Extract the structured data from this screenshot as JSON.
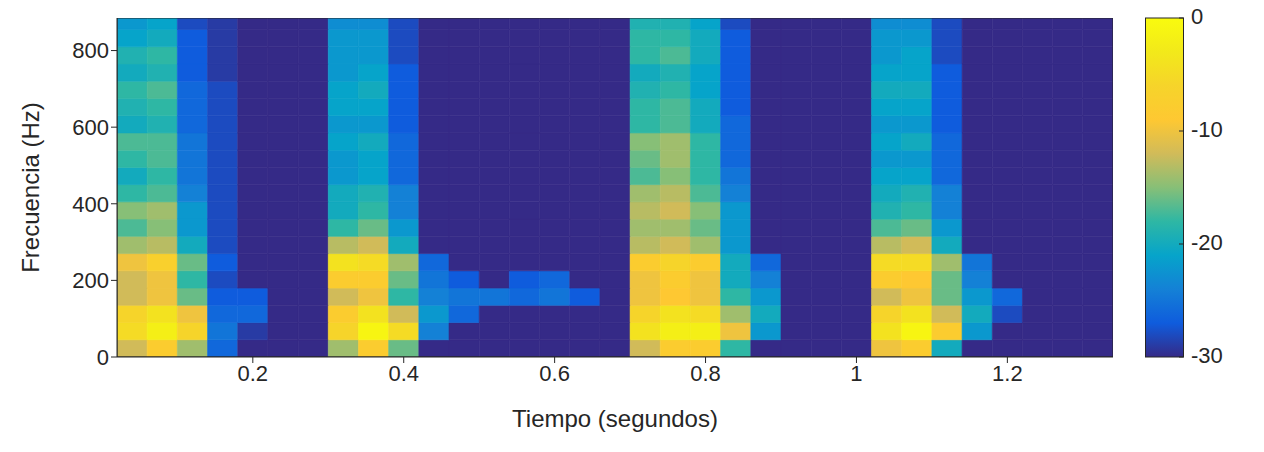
{
  "chart_data": {
    "type": "heatmap",
    "x_label": "Tiempo (segundos)",
    "y_label": "Frecuencia (Hz)",
    "xlim": [
      0.02,
      1.34
    ],
    "xticks": [
      0.2,
      0.4,
      0.6,
      0.8,
      1,
      1.2
    ],
    "ylim": [
      0,
      885
    ],
    "yticks": [
      0,
      200,
      400,
      600,
      800
    ],
    "x_edges": [
      0.02,
      0.06,
      0.1,
      0.14,
      0.18,
      0.22,
      0.26,
      0.3,
      0.34,
      0.38,
      0.42,
      0.46,
      0.5,
      0.54,
      0.58,
      0.62,
      0.66,
      0.7,
      0.74,
      0.78,
      0.82,
      0.86,
      0.9,
      0.94,
      0.98,
      1.02,
      1.06,
      1.1,
      1.14,
      1.18,
      1.22,
      1.26,
      1.3,
      1.34
    ],
    "y_edges": [
      0,
      45,
      90,
      135,
      180,
      225,
      270,
      315,
      360,
      405,
      450,
      495,
      540,
      585,
      630,
      675,
      720,
      765,
      810,
      855,
      900
    ],
    "values": [
      [
        -12,
        -8,
        -14,
        -26,
        -30,
        -30,
        -30,
        -14,
        -8,
        -16,
        -30,
        -30,
        -30,
        -30,
        -30,
        -30,
        -30,
        -12,
        -8,
        -8,
        -18,
        -30,
        -30,
        -30,
        -30,
        -10,
        -8,
        -20,
        -30,
        -30,
        -30,
        -30,
        -30
      ],
      [
        -5,
        -2,
        -6,
        -25,
        -29,
        -30,
        -30,
        -6,
        -1,
        -5,
        -24,
        -30,
        -30,
        -30,
        -30,
        -30,
        -30,
        -4,
        -2,
        -2,
        -10,
        -22,
        -30,
        -30,
        -30,
        -4,
        -1,
        -8,
        -22,
        -30,
        -30,
        -30,
        -30
      ],
      [
        -6,
        -4,
        -10,
        -26,
        -26,
        -30,
        -30,
        -8,
        -4,
        -12,
        -22,
        -26,
        -30,
        -30,
        -30,
        -30,
        -30,
        -6,
        -4,
        -5,
        -14,
        -20,
        -30,
        -30,
        -30,
        -6,
        -4,
        -12,
        -20,
        -28,
        -30,
        -30,
        -30
      ],
      [
        -12,
        -10,
        -16,
        -27,
        -27,
        -30,
        -30,
        -12,
        -10,
        -18,
        -24,
        -25,
        -25,
        -26,
        -25,
        -27,
        -30,
        -10,
        -9,
        -10,
        -18,
        -22,
        -30,
        -30,
        -30,
        -12,
        -10,
        -16,
        -22,
        -26,
        -30,
        -30,
        -30
      ],
      [
        -12,
        -10,
        -18,
        -28,
        -30,
        -30,
        -30,
        -8,
        -8,
        -16,
        -25,
        -27,
        -30,
        -27,
        -26,
        -30,
        -30,
        -10,
        -8,
        -10,
        -20,
        -24,
        -30,
        -30,
        -30,
        -8,
        -9,
        -16,
        -24,
        -30,
        -30,
        -30,
        -30
      ],
      [
        -10,
        -7,
        -16,
        -27,
        -30,
        -30,
        -30,
        -4,
        -5,
        -14,
        -26,
        -30,
        -30,
        -30,
        -30,
        -30,
        -30,
        -8,
        -6,
        -8,
        -20,
        -26,
        -30,
        -30,
        -30,
        -5,
        -5,
        -14,
        -25,
        -30,
        -30,
        -30,
        -30
      ],
      [
        -14,
        -13,
        -20,
        -28,
        -30,
        -30,
        -30,
        -13,
        -12,
        -20,
        -30,
        -30,
        -30,
        -30,
        -30,
        -30,
        -30,
        -13,
        -12,
        -14,
        -22,
        -30,
        -30,
        -30,
        -30,
        -13,
        -12,
        -20,
        -30,
        -30,
        -30,
        -30,
        -30
      ],
      [
        -17,
        -15,
        -22,
        -28,
        -30,
        -30,
        -30,
        -18,
        -16,
        -22,
        -30,
        -30,
        -30,
        -30,
        -30,
        -30,
        -30,
        -14,
        -14,
        -16,
        -22,
        -30,
        -30,
        -30,
        -30,
        -17,
        -16,
        -22,
        -30,
        -30,
        -30,
        -30,
        -30
      ],
      [
        -15,
        -14,
        -22,
        -28,
        -30,
        -30,
        -30,
        -20,
        -18,
        -24,
        -30,
        -30,
        -30,
        -30,
        -30,
        -30,
        -30,
        -13,
        -12,
        -15,
        -22,
        -30,
        -30,
        -30,
        -30,
        -19,
        -18,
        -24,
        -30,
        -30,
        -30,
        -30,
        -30
      ],
      [
        -18,
        -17,
        -24,
        -28,
        -30,
        -30,
        -30,
        -20,
        -19,
        -24,
        -30,
        -30,
        -30,
        -30,
        -30,
        -30,
        -30,
        -14,
        -13,
        -17,
        -24,
        -30,
        -30,
        -30,
        -30,
        -20,
        -19,
        -24,
        -30,
        -30,
        -30,
        -30,
        -30
      ],
      [
        -20,
        -18,
        -25,
        -28,
        -30,
        -30,
        -30,
        -22,
        -21,
        -26,
        -30,
        -30,
        -30,
        -30,
        -30,
        -30,
        -30,
        -17,
        -15,
        -18,
        -25,
        -30,
        -30,
        -30,
        -30,
        -21,
        -21,
        -26,
        -30,
        -30,
        -30,
        -30,
        -30
      ],
      [
        -18,
        -17,
        -25,
        -28,
        -30,
        -30,
        -30,
        -22,
        -21,
        -26,
        -30,
        -30,
        -30,
        -30,
        -30,
        -30,
        -30,
        -16,
        -14,
        -18,
        -26,
        -30,
        -30,
        -30,
        -30,
        -22,
        -22,
        -26,
        -30,
        -30,
        -30,
        -30,
        -30
      ],
      [
        -17,
        -17,
        -25,
        -28,
        -30,
        -30,
        -30,
        -21,
        -20,
        -26,
        -30,
        -30,
        -30,
        -30,
        -30,
        -30,
        -30,
        -15,
        -14,
        -18,
        -26,
        -30,
        -30,
        -30,
        -30,
        -21,
        -20,
        -26,
        -30,
        -30,
        -30,
        -30,
        -30
      ],
      [
        -20,
        -19,
        -26,
        -28,
        -30,
        -30,
        -30,
        -22,
        -22,
        -27,
        -30,
        -30,
        -30,
        -30,
        -30,
        -30,
        -30,
        -18,
        -17,
        -20,
        -26,
        -30,
        -30,
        -30,
        -30,
        -22,
        -22,
        -27,
        -30,
        -30,
        -30,
        -30,
        -30
      ],
      [
        -19,
        -18,
        -26,
        -28,
        -30,
        -30,
        -30,
        -21,
        -21,
        -27,
        -30,
        -30,
        -30,
        -30,
        -30,
        -30,
        -30,
        -18,
        -17,
        -20,
        -27,
        -30,
        -30,
        -30,
        -30,
        -21,
        -21,
        -27,
        -30,
        -30,
        -30,
        -30,
        -30
      ],
      [
        -18,
        -17,
        -26,
        -28,
        -30,
        -30,
        -30,
        -21,
        -20,
        -27,
        -30,
        -30,
        -30,
        -30,
        -30,
        -30,
        -30,
        -19,
        -18,
        -21,
        -27,
        -30,
        -30,
        -30,
        -30,
        -20,
        -20,
        -27,
        -30,
        -30,
        -30,
        -30,
        -30
      ],
      [
        -20,
        -19,
        -27,
        -29,
        -30,
        -30,
        -30,
        -22,
        -21,
        -27,
        -30,
        -30,
        -30,
        -30,
        -30,
        -30,
        -30,
        -20,
        -19,
        -21,
        -27,
        -30,
        -30,
        -30,
        -30,
        -21,
        -21,
        -27,
        -30,
        -30,
        -30,
        -30,
        -30
      ],
      [
        -19,
        -18,
        -27,
        -29,
        -30,
        -30,
        -30,
        -22,
        -22,
        -28,
        -30,
        -30,
        -30,
        -30,
        -30,
        -30,
        -30,
        -18,
        -17,
        -20,
        -27,
        -30,
        -30,
        -30,
        -30,
        -22,
        -21,
        -28,
        -30,
        -30,
        -30,
        -30,
        -30
      ],
      [
        -21,
        -20,
        -27,
        -29,
        -30,
        -30,
        -30,
        -22,
        -22,
        -28,
        -30,
        -30,
        -30,
        -30,
        -30,
        -30,
        -30,
        -18,
        -18,
        -20,
        -27,
        -30,
        -30,
        -30,
        -30,
        -22,
        -22,
        -28,
        -30,
        -30,
        -30,
        -30,
        -30
      ],
      [
        -22,
        -21,
        -28,
        -29,
        -30,
        -30,
        -30,
        -23,
        -23,
        -28,
        -30,
        -30,
        -30,
        -30,
        -30,
        -30,
        -30,
        -19,
        -19,
        -21,
        -28,
        -30,
        -30,
        -30,
        -30,
        -23,
        -23,
        -28,
        -30,
        -30,
        -30,
        -30,
        -30
      ]
    ],
    "colorbar": {
      "range": [
        -30,
        0
      ],
      "ticks": [
        -30,
        -20,
        -10,
        0
      ]
    }
  }
}
